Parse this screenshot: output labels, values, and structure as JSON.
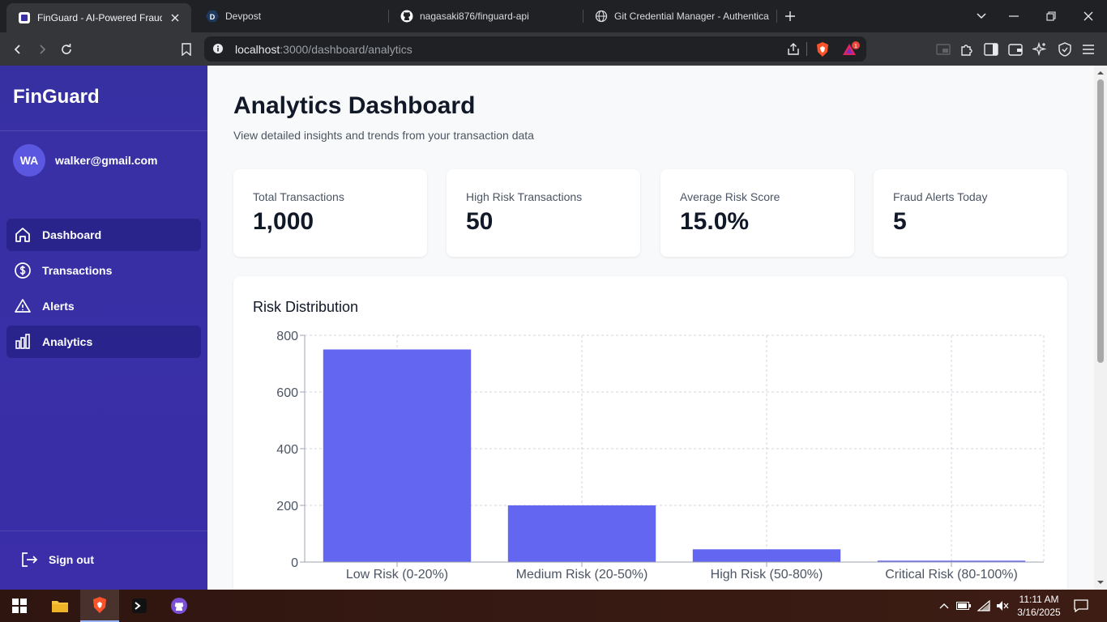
{
  "browser": {
    "tabs": [
      {
        "title": "FinGuard - AI-Powered Fraud D",
        "icon": "finguard-favicon",
        "active": true
      },
      {
        "title": "Devpost",
        "icon": "devpost-favicon",
        "active": false
      },
      {
        "title": "nagasaki876/finguard-api",
        "icon": "github-favicon",
        "active": false
      },
      {
        "title": "Git Credential Manager - Authentica",
        "icon": "globe-favicon",
        "active": false
      }
    ],
    "url_host": "localhost",
    "url_rest": ":3000/dashboard/analytics",
    "notification_count": "1"
  },
  "app": {
    "brand": "FinGuard",
    "user": {
      "initials": "WA",
      "email": "walker@gmail.com"
    },
    "nav": [
      {
        "label": "Dashboard",
        "icon": "home-icon"
      },
      {
        "label": "Transactions",
        "icon": "dollar-circle-icon"
      },
      {
        "label": "Alerts",
        "icon": "warning-triangle-icon"
      },
      {
        "label": "Analytics",
        "icon": "bar-chart-icon"
      }
    ],
    "active_nav": [
      "Dashboard",
      "Analytics"
    ],
    "sign_out": "Sign out"
  },
  "page": {
    "title": "Analytics Dashboard",
    "subtitle": "View detailed insights and trends from your transaction data",
    "stats": [
      {
        "label": "Total Transactions",
        "value": "1,000"
      },
      {
        "label": "High Risk Transactions",
        "value": "50"
      },
      {
        "label": "Average Risk Score",
        "value": "15.0%"
      },
      {
        "label": "Fraud Alerts Today",
        "value": "5"
      }
    ]
  },
  "chart_data": {
    "type": "bar",
    "title": "Risk Distribution",
    "categories": [
      "Low Risk (0-20%)",
      "Medium Risk (20-50%)",
      "High Risk (50-80%)",
      "Critical Risk (80-100%)"
    ],
    "values": [
      750,
      200,
      45,
      5
    ],
    "yticks": [
      0,
      200,
      400,
      600,
      800
    ],
    "ylim": [
      0,
      800
    ],
    "grid": true,
    "bar_color": "#6366f1"
  },
  "taskbar": {
    "time": "11:11 AM",
    "date": "3/16/2025"
  },
  "colors": {
    "sidebar": "#3730a3",
    "accent": "#6366f1"
  }
}
